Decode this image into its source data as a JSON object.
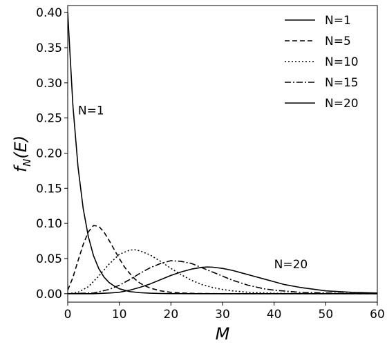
{
  "chart_data": {
    "type": "line",
    "xlabel": "M",
    "ylabel_main": "f",
    "ylabel_sub": "N",
    "ylabel_arg": "(E)",
    "xlim": [
      0,
      60
    ],
    "ylim": [
      -0.012,
      0.41
    ],
    "xticks": [
      0,
      10,
      20,
      30,
      40,
      50,
      60
    ],
    "yticks": [
      "0.00",
      "0.05",
      "0.10",
      "0.15",
      "0.20",
      "0.25",
      "0.30",
      "0.35",
      "0.40"
    ],
    "ytick_values": [
      0.0,
      0.05,
      0.1,
      0.15,
      0.2,
      0.25,
      0.3,
      0.35,
      0.4
    ],
    "grid": false,
    "legend_position": "top-right",
    "series": [
      {
        "name": "N=1",
        "dash": "solid",
        "x": [
          0,
          1,
          2,
          3,
          4,
          5,
          6,
          7,
          8,
          9,
          10,
          12,
          14,
          16,
          18,
          20,
          25,
          30,
          40,
          50,
          60
        ],
        "y": [
          0.4,
          0.268,
          0.18,
          0.121,
          0.081,
          0.054,
          0.036,
          0.024,
          0.016,
          0.011,
          0.007,
          0.003,
          0.0015,
          0.0007,
          0.0003,
          0.0001,
          0,
          0,
          0,
          0,
          0
        ]
      },
      {
        "name": "N=5",
        "dash": "dashed",
        "x": [
          0,
          1,
          2,
          3,
          4,
          5,
          6,
          7,
          8,
          9,
          10,
          11,
          12,
          13,
          14,
          15,
          16,
          18,
          20,
          22,
          25,
          30,
          35,
          40,
          50,
          60
        ],
        "y": [
          0.005,
          0.023,
          0.047,
          0.07,
          0.088,
          0.097,
          0.096,
          0.088,
          0.076,
          0.063,
          0.05,
          0.038,
          0.029,
          0.021,
          0.015,
          0.011,
          0.008,
          0.004,
          0.002,
          0.001,
          0.0003,
          0,
          0,
          0,
          0,
          0
        ]
      },
      {
        "name": "N=10",
        "dash": "dotted",
        "x": [
          0,
          2,
          4,
          6,
          8,
          10,
          12,
          13,
          14,
          16,
          18,
          20,
          22,
          24,
          26,
          28,
          30,
          32,
          35,
          40,
          45,
          50,
          60
        ],
        "y": [
          0.0,
          0.002,
          0.01,
          0.025,
          0.042,
          0.056,
          0.062,
          0.0625,
          0.061,
          0.055,
          0.046,
          0.036,
          0.027,
          0.019,
          0.013,
          0.009,
          0.006,
          0.004,
          0.002,
          0.0006,
          0.0002,
          0.0001,
          0
        ]
      },
      {
        "name": "N=15",
        "dash": "dashdot",
        "x": [
          0,
          5,
          8,
          10,
          12,
          14,
          16,
          18,
          20,
          22,
          24,
          26,
          28,
          30,
          32,
          35,
          38,
          40,
          45,
          50,
          55,
          60
        ],
        "y": [
          0.0,
          0.001,
          0.006,
          0.012,
          0.02,
          0.029,
          0.037,
          0.043,
          0.047,
          0.046,
          0.043,
          0.037,
          0.031,
          0.025,
          0.019,
          0.012,
          0.007,
          0.005,
          0.002,
          0.001,
          0.0003,
          0.0001
        ]
      },
      {
        "name": "N=20",
        "dash": "solid",
        "x": [
          0,
          5,
          8,
          10,
          12,
          14,
          16,
          18,
          20,
          22,
          24,
          26,
          27,
          28,
          30,
          32,
          34,
          36,
          38,
          40,
          42,
          45,
          48,
          50,
          55,
          60
        ],
        "y": [
          0.0,
          0.0,
          0.001,
          0.002,
          0.005,
          0.009,
          0.014,
          0.02,
          0.026,
          0.031,
          0.035,
          0.0375,
          0.038,
          0.0378,
          0.036,
          0.033,
          0.029,
          0.025,
          0.021,
          0.017,
          0.013,
          0.009,
          0.006,
          0.004,
          0.002,
          0.001
        ]
      }
    ],
    "annotations": [
      {
        "text": "N=1",
        "x": 2.0,
        "y": 0.255
      },
      {
        "text": "N=20",
        "x": 40.0,
        "y": 0.036
      }
    ]
  }
}
